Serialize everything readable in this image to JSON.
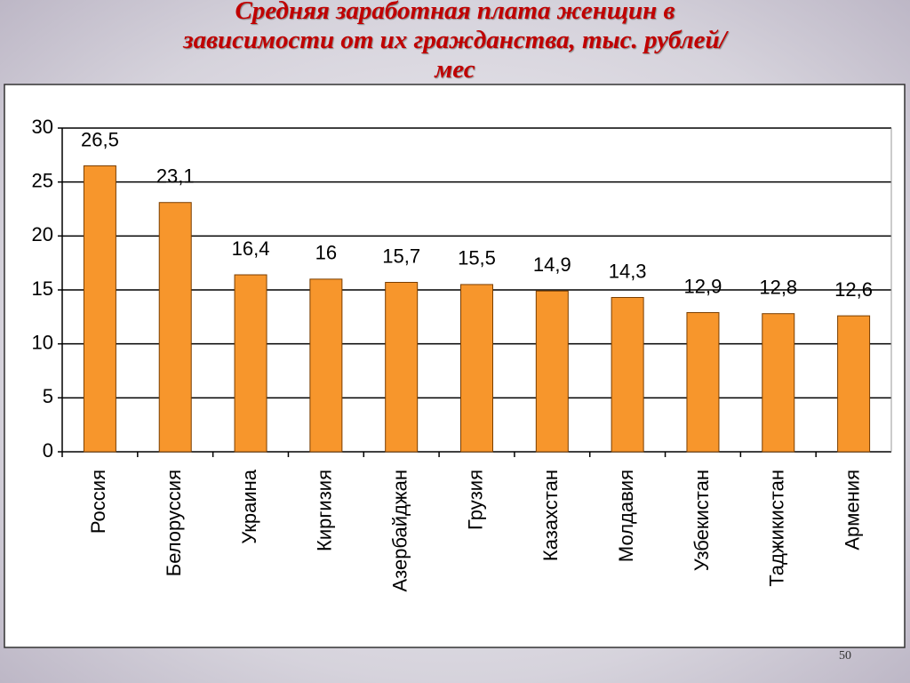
{
  "chart_data": {
    "type": "bar",
    "title": "Средняя заработная плата женщин в зависимости от их гражданства, тыс. рублей/мес",
    "categories": [
      "Россия",
      "Белоруссия",
      "Украина",
      "Киргизия",
      "Азербайджан",
      "Грузия",
      "Казахстан",
      "Молдавия",
      "Узбекистан",
      "Таджикистан",
      "Армения"
    ],
    "values": [
      26.5,
      23.1,
      16.4,
      16,
      15.7,
      15.5,
      14.9,
      14.3,
      12.9,
      12.8,
      12.6
    ],
    "value_labels": [
      "26,5",
      "23,1",
      "16,4",
      "16",
      "15,7",
      "15,5",
      "14,9",
      "14,3",
      "12,9",
      "12,8",
      "12,6"
    ],
    "color": "#f7962c",
    "ylim": [
      0,
      30
    ],
    "yticks": [
      0,
      5,
      10,
      15,
      20,
      25,
      30
    ],
    "grid": true
  },
  "page_number": "50"
}
